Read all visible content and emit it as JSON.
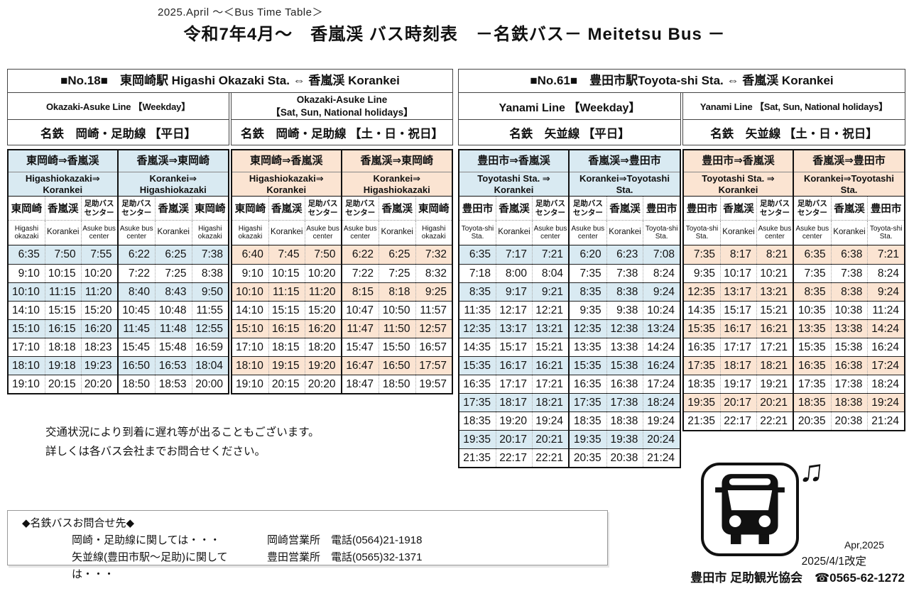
{
  "header": {
    "small_title": "2025.April ～＜Bus Time Table＞",
    "main_title": "令和7年4月～　香嵐渓 バス時刻表　－名鉄バス－ Meitetsu Bus －"
  },
  "colors": {
    "weekday": "#d9eaf2",
    "holiday": "#fbe4d2"
  },
  "tables": [
    {
      "title": "■No.18■　東岡崎駅 Higashi Okazaki Sta. ⇔ 香嵐渓 Korankei",
      "halves": [
        {
          "color": "weekday",
          "line_en": "Okazaki-Asuke  Line 【Weekday】",
          "line_jp": "名鉄　岡崎・足助線 【平日】",
          "blocks": [
            {
              "dir_jp": "東岡崎⇒香嵐渓",
              "dir_en": "Higashiokazaki⇒\nKorankei",
              "cols_jp": [
                "東岡崎",
                "香嵐渓",
                "足助バス\nセンター"
              ],
              "cols_en": [
                "Higashi\nokazaki",
                "Korankei",
                "Asuke bus\ncenter"
              ],
              "rows": [
                [
                  "6:35",
                  "7:50",
                  "7:55"
                ],
                [
                  "9:10",
                  "10:15",
                  "10:20"
                ],
                [
                  "10:10",
                  "11:15",
                  "11:20"
                ],
                [
                  "14:10",
                  "15:15",
                  "15:20"
                ],
                [
                  "15:10",
                  "16:15",
                  "16:20"
                ],
                [
                  "17:10",
                  "18:18",
                  "18:23"
                ],
                [
                  "18:10",
                  "19:18",
                  "19:23"
                ],
                [
                  "19:10",
                  "20:15",
                  "20:20"
                ]
              ]
            },
            {
              "dir_jp": "香嵐渓⇒東岡崎",
              "dir_en": "Korankei⇒\nHigashiokazaki",
              "cols_jp": [
                "足助バス\nセンター",
                "香嵐渓",
                "東岡崎"
              ],
              "cols_en": [
                "Asuke bus\ncenter",
                "Korankei",
                "Higashi\nokazaki"
              ],
              "rows": [
                [
                  "6:22",
                  "6:25",
                  "7:38"
                ],
                [
                  "7:22",
                  "7:25",
                  "8:38"
                ],
                [
                  "8:40",
                  "8:43",
                  "9:50"
                ],
                [
                  "10:45",
                  "10:48",
                  "11:55"
                ],
                [
                  "11:45",
                  "11:48",
                  "12:55"
                ],
                [
                  "15:45",
                  "15:48",
                  "16:59"
                ],
                [
                  "16:50",
                  "16:53",
                  "18:04"
                ],
                [
                  "18:50",
                  "18:53",
                  "20:00"
                ]
              ]
            }
          ]
        },
        {
          "color": "holiday",
          "line_en": "Okazaki-Asuke Line\n【Sat, Sun, National holidays】",
          "line_jp": "名鉄　岡崎・足助線 【土・日・祝日】",
          "blocks": [
            {
              "dir_jp": "東岡崎⇒香嵐渓",
              "dir_en": "Higashiokazaki⇒\nKorankei",
              "cols_jp": [
                "東岡崎",
                "香嵐渓",
                "足助バス\nセンター"
              ],
              "cols_en": [
                "Higashi\nokazaki",
                "Korankei",
                "Asuke bus\ncenter"
              ],
              "rows": [
                [
                  "6:40",
                  "7:45",
                  "7:50"
                ],
                [
                  "9:10",
                  "10:15",
                  "10:20"
                ],
                [
                  "10:10",
                  "11:15",
                  "11:20"
                ],
                [
                  "14:10",
                  "15:15",
                  "15:20"
                ],
                [
                  "15:10",
                  "16:15",
                  "16:20"
                ],
                [
                  "17:10",
                  "18:15",
                  "18:20"
                ],
                [
                  "18:10",
                  "19:15",
                  "19:20"
                ],
                [
                  "19:10",
                  "20:15",
                  "20:20"
                ]
              ]
            },
            {
              "dir_jp": "香嵐渓⇒東岡崎",
              "dir_en": "Korankei⇒\nHigashiokazaki",
              "cols_jp": [
                "足助バス\nセンター",
                "香嵐渓",
                "東岡崎"
              ],
              "cols_en": [
                "Asuke bus\ncenter",
                "Korankei",
                "Higashi\nokazaki"
              ],
              "rows": [
                [
                  "6:22",
                  "6:25",
                  "7:32"
                ],
                [
                  "7:22",
                  "7:25",
                  "8:32"
                ],
                [
                  "8:15",
                  "8:18",
                  "9:25"
                ],
                [
                  "10:47",
                  "10:50",
                  "11:57"
                ],
                [
                  "11:47",
                  "11:50",
                  "12:57"
                ],
                [
                  "15:47",
                  "15:50",
                  "16:57"
                ],
                [
                  "16:47",
                  "16:50",
                  "17:57"
                ],
                [
                  "18:47",
                  "18:50",
                  "19:57"
                ]
              ]
            }
          ]
        }
      ]
    },
    {
      "title": "■No.61■　豊田市駅Toyota-shi Sta. ⇔  香嵐渓 Korankei",
      "halves": [
        {
          "color": "weekday",
          "line_en": "Yanami  Line 【Weekday】",
          "line_jp": "名鉄　矢並線 【平日】",
          "blocks": [
            {
              "dir_jp": "豊田市⇒香嵐渓",
              "dir_en": "Toyotashi Sta. ⇒\nKorankei",
              "cols_jp": [
                "豊田市",
                "香嵐渓",
                "足助バス\nセンター"
              ],
              "cols_en": [
                "Toyota-shi\nSta.",
                "Korankei",
                "Asuke bus\ncenter"
              ],
              "rows": [
                [
                  "6:35",
                  "7:17",
                  "7:21"
                ],
                [
                  "7:18",
                  "8:00",
                  "8:04"
                ],
                [
                  "8:35",
                  "9:17",
                  "9:21"
                ],
                [
                  "11:35",
                  "12:17",
                  "12:21"
                ],
                [
                  "12:35",
                  "13:17",
                  "13:21"
                ],
                [
                  "14:35",
                  "15:17",
                  "15:21"
                ],
                [
                  "15:35",
                  "16:17",
                  "16:21"
                ],
                [
                  "16:35",
                  "17:17",
                  "17:21"
                ],
                [
                  "17:35",
                  "18:17",
                  "18:21"
                ],
                [
                  "18:35",
                  "19:20",
                  "19:24"
                ],
                [
                  "19:35",
                  "20:17",
                  "20:21"
                ],
                [
                  "21:35",
                  "22:17",
                  "22:21"
                ]
              ]
            },
            {
              "dir_jp": "香嵐渓⇒豊田市",
              "dir_en": "Korankei⇒Toyotashi\nSta.",
              "cols_jp": [
                "足助バス\nセンター",
                "香嵐渓",
                "豊田市"
              ],
              "cols_en": [
                "Asuke bus\ncenter",
                "Korankei",
                "Toyota-shi\nSta."
              ],
              "rows": [
                [
                  "6:20",
                  "6:23",
                  "7:08"
                ],
                [
                  "7:35",
                  "7:38",
                  "8:24"
                ],
                [
                  "8:35",
                  "8:38",
                  "9:24"
                ],
                [
                  "9:35",
                  "9:38",
                  "10:24"
                ],
                [
                  "12:35",
                  "12:38",
                  "13:24"
                ],
                [
                  "13:35",
                  "13:38",
                  "14:24"
                ],
                [
                  "15:35",
                  "15:38",
                  "16:24"
                ],
                [
                  "16:35",
                  "16:38",
                  "17:24"
                ],
                [
                  "17:35",
                  "17:38",
                  "18:24"
                ],
                [
                  "18:35",
                  "18:38",
                  "19:24"
                ],
                [
                  "19:35",
                  "19:38",
                  "20:24"
                ],
                [
                  "20:35",
                  "20:38",
                  "21:24"
                ]
              ]
            }
          ]
        },
        {
          "color": "holiday",
          "line_en": "Yanami  Line 【Sat, Sun, National holidays】",
          "line_jp": "名鉄　矢並線 【土・日・祝日】",
          "blocks": [
            {
              "dir_jp": "豊田市⇒香嵐渓",
              "dir_en": "Toyotashi Sta. ⇒\nKorankei",
              "cols_jp": [
                "豊田市",
                "香嵐渓",
                "足助バス\nセンター"
              ],
              "cols_en": [
                "Toyota-shi\nSta.",
                "Korankei",
                "Asuke bus\ncenter"
              ],
              "rows": [
                [
                  "7:35",
                  "8:17",
                  "8:21"
                ],
                [
                  "9:35",
                  "10:17",
                  "10:21"
                ],
                [
                  "12:35",
                  "13:17",
                  "13:21"
                ],
                [
                  "14:35",
                  "15:17",
                  "15:21"
                ],
                [
                  "15:35",
                  "16:17",
                  "16:21"
                ],
                [
                  "16:35",
                  "17:17",
                  "17:21"
                ],
                [
                  "17:35",
                  "18:17",
                  "18:21"
                ],
                [
                  "18:35",
                  "19:17",
                  "19:21"
                ],
                [
                  "19:35",
                  "20:17",
                  "20:21"
                ],
                [
                  "21:35",
                  "22:17",
                  "22:21"
                ]
              ]
            },
            {
              "dir_jp": "香嵐渓⇒豊田市",
              "dir_en": "Korankei⇒Toyotashi\nSta.",
              "cols_jp": [
                "足助バス\nセンター",
                "香嵐渓",
                "豊田市"
              ],
              "cols_en": [
                "Asuke bus\ncenter",
                "Korankei",
                "Toyota-shi\nSta."
              ],
              "rows": [
                [
                  "6:35",
                  "6:38",
                  "7:21"
                ],
                [
                  "7:35",
                  "7:38",
                  "8:24"
                ],
                [
                  "8:35",
                  "8:38",
                  "9:24"
                ],
                [
                  "10:35",
                  "10:38",
                  "11:24"
                ],
                [
                  "13:35",
                  "13:38",
                  "14:24"
                ],
                [
                  "15:35",
                  "15:38",
                  "16:24"
                ],
                [
                  "16:35",
                  "16:38",
                  "17:24"
                ],
                [
                  "17:35",
                  "17:38",
                  "18:24"
                ],
                [
                  "18:35",
                  "18:38",
                  "19:24"
                ],
                [
                  "20:35",
                  "20:38",
                  "21:24"
                ]
              ]
            }
          ]
        }
      ]
    }
  ],
  "notice": [
    "交通状況により到着に遅れ等が出ることもございます。",
    "詳しくは各バス会社までお問合せください。"
  ],
  "contact": {
    "title": "◆名鉄バスお問合せ先◆",
    "lines": [
      {
        "label": "岡崎・足助線に関しては・・・",
        "office": "岡崎営業所　電話(0564)21-1918"
      },
      {
        "label": "矢並線(豊田市駅～足助)に関しては・・・",
        "office": "豊田営業所　電話(0565)32-1371"
      }
    ]
  },
  "footer": {
    "bus_icon": "bus-front-icon",
    "note_icon": "music-note-icon",
    "date_en": "Apr,2025",
    "revision": "2025/4/1改定",
    "org": "豊田市 足助観光協会　☎0565-62-1272"
  }
}
